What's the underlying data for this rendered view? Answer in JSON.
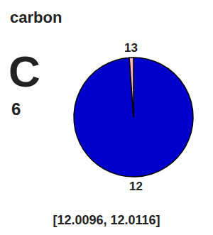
{
  "chart_data": {
    "type": "pie",
    "title": "carbon",
    "annotations": [
      "C",
      "6",
      "[12.0096, 12.0116]"
    ],
    "categories": [
      "12",
      "13"
    ],
    "values": [
      98.89,
      1.11
    ],
    "colors": [
      "#0000CC",
      "#FFB3C6"
    ]
  }
}
